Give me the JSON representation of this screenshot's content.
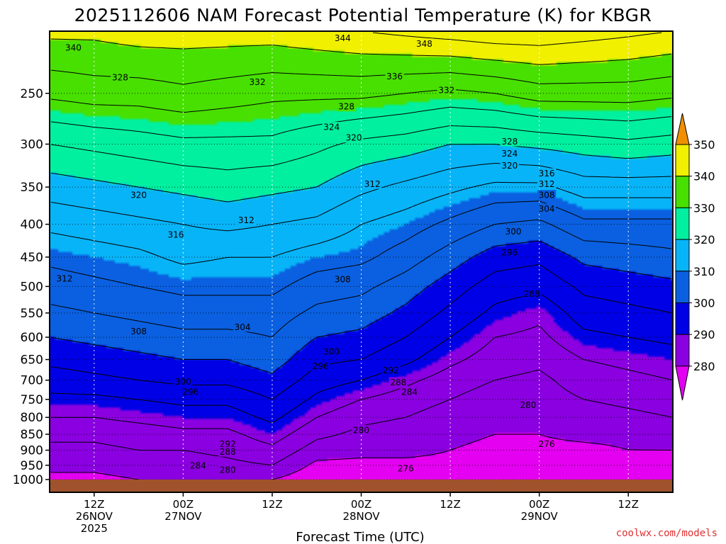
{
  "chart_data": {
    "type": "heatmap",
    "title": "2025112606 NAM Forecast Potential Temperature (K) for KBGR",
    "xlabel": "Forecast Time (UTC)",
    "ylabel": "",
    "credit": "coolwx.com/models",
    "y_scale": "log-pressure",
    "ylim": [
      1000,
      200
    ],
    "xlim_hours": [
      0,
      84
    ],
    "y_ticks": [
      250,
      300,
      350,
      400,
      450,
      500,
      550,
      600,
      650,
      700,
      750,
      800,
      850,
      900,
      950,
      1000
    ],
    "x_ticks": [
      {
        "hour": 6,
        "line1": "12Z",
        "line2": "26NOV",
        "line3": "2025"
      },
      {
        "hour": 18,
        "line1": "00Z",
        "line2": "27NOV",
        "line3": ""
      },
      {
        "hour": 30,
        "line1": "12Z",
        "line2": "",
        "line3": ""
      },
      {
        "hour": 42,
        "line1": "00Z",
        "line2": "28NOV",
        "line3": ""
      },
      {
        "hour": 54,
        "line1": "12Z",
        "line2": "",
        "line3": ""
      },
      {
        "hour": 66,
        "line1": "00Z",
        "line2": "29NOV",
        "line3": ""
      },
      {
        "hour": 78,
        "line1": "12Z",
        "line2": "",
        "line3": ""
      }
    ],
    "colorbar": {
      "levels": [
        280,
        290,
        300,
        310,
        320,
        330,
        340,
        350
      ],
      "colors": [
        "#e400f0",
        "#8a00e0",
        "#0000e6",
        "#0a60e0",
        "#08b4f8",
        "#00f0a0",
        "#48e000",
        "#f0f000",
        "#f09000"
      ]
    },
    "profile_hours": [
      0,
      6,
      12,
      18,
      24,
      30,
      36,
      42,
      48,
      54,
      60,
      66,
      72,
      78,
      84
    ],
    "levels_hpa": [
      1000,
      950,
      900,
      850,
      800,
      750,
      700,
      650,
      600,
      550,
      500,
      450,
      400,
      350,
      300,
      250,
      200
    ],
    "theta_K": [
      [
        279,
        281,
        283,
        285,
        288,
        291,
        294,
        297,
        300,
        303,
        306,
        309,
        313,
        318,
        324,
        333,
        341
      ],
      [
        279,
        281,
        283,
        285,
        288,
        291,
        295,
        298,
        301,
        304,
        307,
        310,
        314,
        319,
        325,
        334,
        341
      ],
      [
        280,
        282,
        284,
        286,
        289,
        292,
        296,
        299,
        302,
        305,
        308,
        311,
        315,
        320,
        326,
        334,
        342
      ],
      [
        280,
        282,
        284,
        287,
        290,
        293,
        297,
        300,
        303,
        306,
        309,
        313,
        316,
        321,
        327,
        335,
        342
      ],
      [
        280,
        283,
        285,
        287,
        290,
        293,
        297,
        300,
        303,
        306,
        309,
        312,
        317,
        322,
        327,
        334,
        342
      ],
      [
        280,
        284,
        287,
        290,
        293,
        296,
        299,
        302,
        304,
        306,
        309,
        312,
        316,
        321,
        327,
        333,
        342
      ],
      [
        277,
        279,
        282,
        285,
        288,
        291,
        294,
        297,
        300,
        303,
        306,
        310,
        315,
        320,
        325,
        333,
        343
      ],
      [
        277,
        279,
        281,
        283,
        285,
        288,
        292,
        296,
        299,
        302,
        305,
        309,
        312,
        317,
        323,
        333,
        344
      ],
      [
        277,
        279,
        281,
        282,
        284,
        286,
        289,
        293,
        296,
        299,
        302,
        306,
        310,
        315,
        322,
        332,
        345
      ],
      [
        277,
        279,
        280,
        281,
        282,
        284,
        286,
        289,
        292,
        295,
        298,
        302,
        307,
        313,
        320,
        331,
        346
      ],
      [
        276,
        278,
        279,
        280,
        281,
        282,
        284,
        286,
        288,
        291,
        294,
        298,
        304,
        311,
        320,
        332,
        347
      ],
      [
        276,
        278,
        279,
        280,
        281,
        282,
        283,
        285,
        287,
        289,
        293,
        297,
        303,
        311,
        321,
        334,
        347
      ],
      [
        276,
        278,
        279,
        281,
        282,
        284,
        286,
        288,
        291,
        294,
        297,
        301,
        307,
        314,
        322,
        334,
        346
      ],
      [
        276,
        278,
        280,
        281,
        283,
        285,
        287,
        289,
        292,
        295,
        298,
        302,
        307,
        314,
        323,
        334,
        345
      ],
      [
        276,
        278,
        280,
        282,
        284,
        286,
        288,
        290,
        293,
        296,
        299,
        303,
        307,
        314,
        322,
        333,
        344
      ]
    ],
    "contour_labels": [
      {
        "text": "340",
        "hour": 3.2,
        "p": 212
      },
      {
        "text": "344",
        "hour": 39.5,
        "p": 205
      },
      {
        "text": "348",
        "hour": 50.5,
        "p": 209
      },
      {
        "text": "328",
        "hour": 9.5,
        "p": 236
      },
      {
        "text": "332",
        "hour": 28,
        "p": 240
      },
      {
        "text": "336",
        "hour": 46.5,
        "p": 235
      },
      {
        "text": "332",
        "hour": 53.5,
        "p": 247
      },
      {
        "text": "328",
        "hour": 40,
        "p": 262
      },
      {
        "text": "324",
        "hour": 38,
        "p": 282
      },
      {
        "text": "320",
        "hour": 41,
        "p": 293
      },
      {
        "text": "328",
        "hour": 62,
        "p": 297
      },
      {
        "text": "324",
        "hour": 62,
        "p": 310
      },
      {
        "text": "320",
        "hour": 62,
        "p": 324
      },
      {
        "text": "316",
        "hour": 67,
        "p": 333
      },
      {
        "text": "312",
        "hour": 67,
        "p": 346
      },
      {
        "text": "308",
        "hour": 67,
        "p": 360
      },
      {
        "text": "304",
        "hour": 67,
        "p": 378
      },
      {
        "text": "320",
        "hour": 12,
        "p": 360
      },
      {
        "text": "312",
        "hour": 43.5,
        "p": 346
      },
      {
        "text": "312",
        "hour": 26.5,
        "p": 394
      },
      {
        "text": "316",
        "hour": 17,
        "p": 415
      },
      {
        "text": "300",
        "hour": 62.5,
        "p": 410
      },
      {
        "text": "296",
        "hour": 62,
        "p": 442
      },
      {
        "text": "312",
        "hour": 2,
        "p": 486
      },
      {
        "text": "308",
        "hour": 39.5,
        "p": 487
      },
      {
        "text": "288",
        "hour": 65,
        "p": 513
      },
      {
        "text": "308",
        "hour": 12,
        "p": 587
      },
      {
        "text": "304",
        "hour": 26,
        "p": 578
      },
      {
        "text": "300",
        "hour": 38,
        "p": 631
      },
      {
        "text": "296",
        "hour": 36.5,
        "p": 665
      },
      {
        "text": "292",
        "hour": 46,
        "p": 675
      },
      {
        "text": "288",
        "hour": 47,
        "p": 705
      },
      {
        "text": "284",
        "hour": 48.5,
        "p": 730
      },
      {
        "text": "300",
        "hour": 18,
        "p": 703
      },
      {
        "text": "296",
        "hour": 19,
        "p": 730
      },
      {
        "text": "280",
        "hour": 64.5,
        "p": 765
      },
      {
        "text": "280",
        "hour": 42,
        "p": 837
      },
      {
        "text": "276",
        "hour": 67,
        "p": 880
      },
      {
        "text": "292",
        "hour": 24,
        "p": 880
      },
      {
        "text": "288",
        "hour": 24,
        "p": 905
      },
      {
        "text": "284",
        "hour": 20,
        "p": 950
      },
      {
        "text": "280",
        "hour": 24,
        "p": 965
      },
      {
        "text": "276",
        "hour": 48,
        "p": 960
      }
    ]
  }
}
